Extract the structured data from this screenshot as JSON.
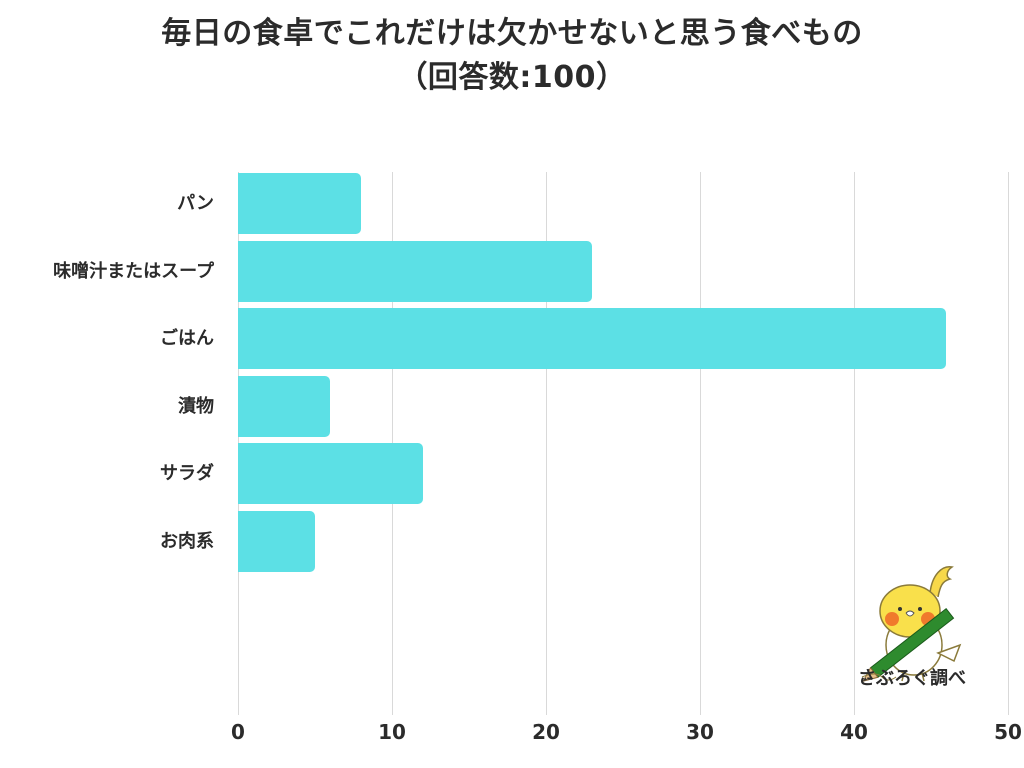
{
  "title": {
    "line1": "毎日の食卓でこれだけは欠かせないと思う食べもの",
    "line2": "（回答数:100）"
  },
  "colors": {
    "bar": "#5ce0e5",
    "text": "#2b2b2b",
    "grid": "#d9d9d9"
  },
  "axis": {
    "ticks": [
      "0",
      "10",
      "20",
      "30",
      "40",
      "50"
    ]
  },
  "logo": {
    "icon": "cockatiel-with-pencil-icon",
    "text": "さぶろぐ調べ"
  },
  "chart_data": {
    "type": "bar",
    "orientation": "horizontal",
    "title": "毎日の食卓でこれだけは欠かせないと思う食べもの（回答数:100）",
    "categories": [
      "パン",
      "味噌汁またはスープ",
      "ごはん",
      "漬物",
      "サラダ",
      "お肉系"
    ],
    "values": [
      8,
      23,
      46,
      6,
      12,
      5
    ],
    "xlabel": "",
    "ylabel": "",
    "xlim": [
      0,
      50
    ],
    "xticks": [
      0,
      10,
      20,
      30,
      40,
      50
    ],
    "grid": "vertical",
    "legend": "none",
    "annotation": "さぶろぐ調べ"
  }
}
